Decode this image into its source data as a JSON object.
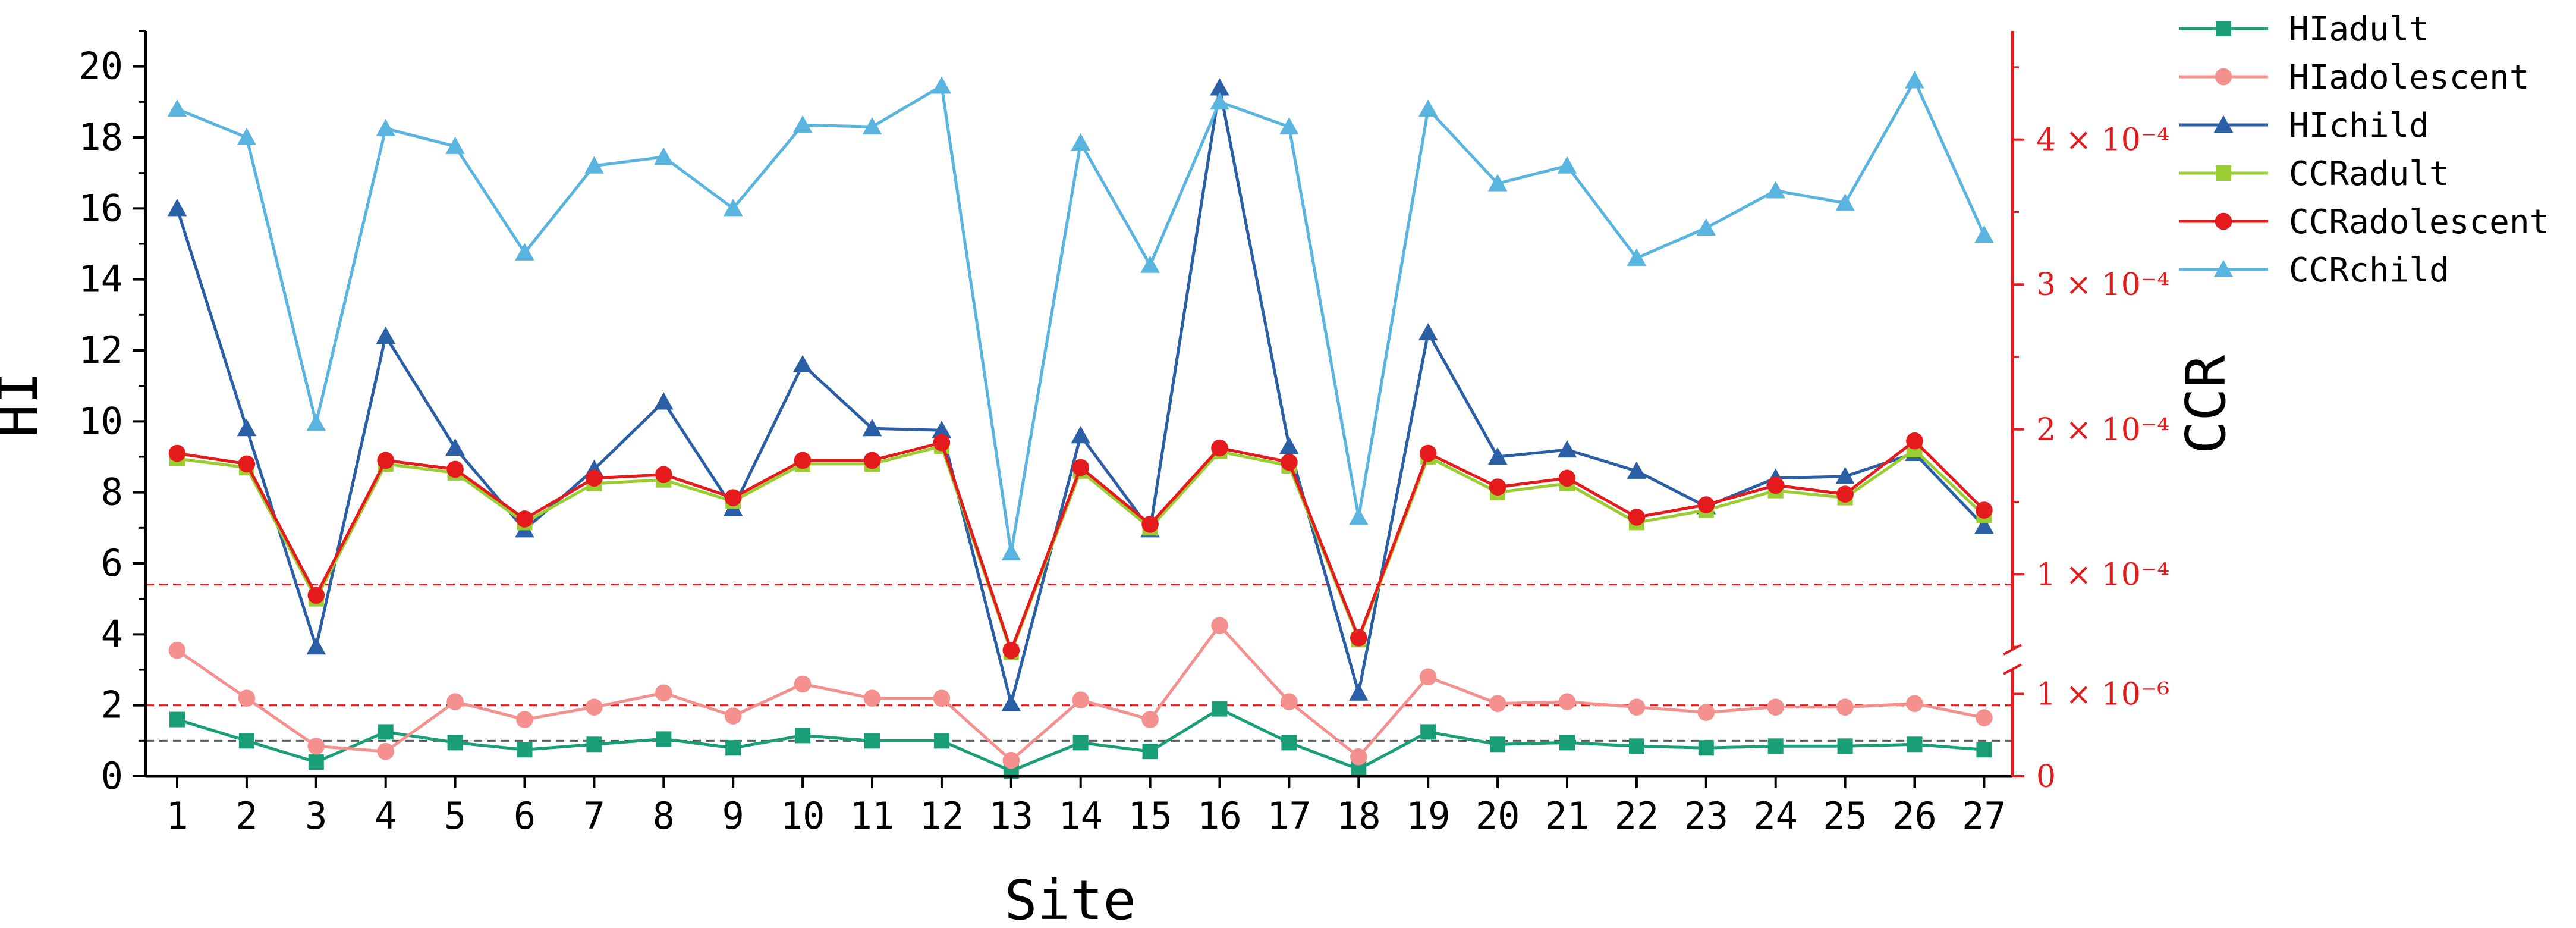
{
  "chart_data": {
    "type": "line",
    "xlabel": "Site",
    "ylabel_left": "HI",
    "ylabel_right": "CCR",
    "categories": [
      "1",
      "2",
      "3",
      "4",
      "5",
      "6",
      "7",
      "8",
      "9",
      "10",
      "11",
      "12",
      "13",
      "14",
      "15",
      "16",
      "17",
      "18",
      "19",
      "20",
      "21",
      "22",
      "23",
      "24",
      "25",
      "26",
      "27"
    ],
    "left_axis": {
      "ylim": [
        0,
        21
      ],
      "ticks": [
        "0",
        "2",
        "4",
        "6",
        "8",
        "10",
        "12",
        "14",
        "16",
        "18",
        "20"
      ],
      "tick_values": [
        0,
        2,
        4,
        6,
        8,
        10,
        12,
        14,
        16,
        18,
        20
      ]
    },
    "right_axis": {
      "color": "#e41a1c",
      "lower_segment": {
        "range_e6": [
          0,
          1.3
        ],
        "labels": [
          "0",
          "1 × 10⁻⁶"
        ],
        "values_e6": [
          0,
          1
        ]
      },
      "upper_segment": {
        "range_e4": [
          0.48,
          4.75
        ],
        "labels": [
          "1 × 10⁻⁴",
          "2 × 10⁻⁴",
          "3 × 10⁻⁴",
          "4 × 10⁻⁴"
        ],
        "values_e4": [
          1,
          2,
          3,
          4
        ]
      }
    },
    "reference_lines": [
      {
        "axis": "left",
        "value": 1,
        "color": "#555555"
      },
      {
        "axis": "left",
        "value": 2,
        "color": "#e41a1c"
      },
      {
        "axis": "left",
        "value": 5.4,
        "color": "#e41a1c"
      }
    ],
    "series": [
      {
        "name": "HIadult",
        "color": "#1a9e77",
        "marker": "square",
        "values": [
          1.6,
          1.0,
          0.4,
          1.25,
          0.95,
          0.75,
          0.9,
          1.05,
          0.8,
          1.15,
          1.0,
          1.0,
          0.15,
          0.95,
          0.7,
          1.9,
          0.95,
          0.2,
          1.25,
          0.9,
          0.95,
          0.85,
          0.8,
          0.85,
          0.85,
          0.9,
          0.75
        ]
      },
      {
        "name": "HIadolescent",
        "color": "#f4908e",
        "marker": "circle",
        "values": [
          3.55,
          2.2,
          0.85,
          0.7,
          2.1,
          1.6,
          1.95,
          2.35,
          1.7,
          2.6,
          2.2,
          2.2,
          0.45,
          2.15,
          1.6,
          4.25,
          2.1,
          0.55,
          2.8,
          2.05,
          2.1,
          1.95,
          1.8,
          1.95,
          1.95,
          2.05,
          1.65
        ]
      },
      {
        "name": "HIchild",
        "color": "#2a5fa5",
        "marker": "triangle",
        "values": [
          16.0,
          9.8,
          3.65,
          12.4,
          9.25,
          6.95,
          8.65,
          10.55,
          7.55,
          11.6,
          9.8,
          9.75,
          2.05,
          9.6,
          6.95,
          19.4,
          9.3,
          2.35,
          12.5,
          9.0,
          9.2,
          8.6,
          7.6,
          8.4,
          8.45,
          9.1,
          7.05
        ]
      },
      {
        "name": "CCRadult",
        "color": "#9acd32",
        "marker": "square",
        "values": [
          8.95,
          8.7,
          5.0,
          8.8,
          8.55,
          7.15,
          8.25,
          8.35,
          7.75,
          8.8,
          8.8,
          9.3,
          3.5,
          8.6,
          7.0,
          9.15,
          8.75,
          3.85,
          9.0,
          8.0,
          8.25,
          7.15,
          7.5,
          8.05,
          7.85,
          9.2,
          7.35
        ]
      },
      {
        "name": "CCRadolescent",
        "color": "#e41a1c",
        "marker": "circle",
        "values": [
          9.1,
          8.8,
          5.1,
          8.9,
          8.65,
          7.25,
          8.4,
          8.5,
          7.85,
          8.9,
          8.9,
          9.4,
          3.55,
          8.7,
          7.1,
          9.25,
          8.85,
          3.9,
          9.1,
          8.15,
          8.4,
          7.3,
          7.65,
          8.2,
          7.95,
          9.45,
          7.5
        ]
      },
      {
        "name": "CCRchild",
        "color": "#5ab4e0",
        "marker": "triangle",
        "values": [
          18.8,
          18.0,
          9.95,
          18.25,
          17.75,
          14.75,
          17.2,
          17.45,
          16.0,
          18.35,
          18.3,
          19.45,
          6.3,
          17.85,
          14.4,
          19.0,
          18.3,
          7.3,
          18.8,
          16.7,
          17.2,
          14.6,
          15.45,
          16.5,
          16.15,
          19.6,
          15.25
        ]
      }
    ]
  }
}
